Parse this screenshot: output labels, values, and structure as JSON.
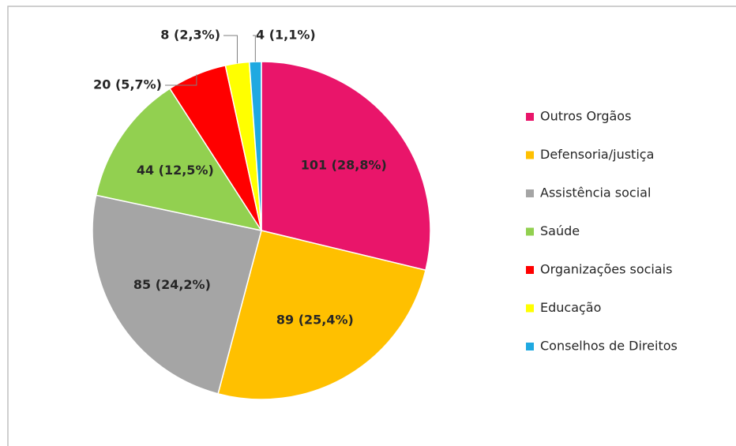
{
  "chart_data": {
    "type": "pie",
    "categories": [
      "Outros Orgãos",
      "Defensoria/justiça",
      "Assistência social",
      "Saúde",
      "Organizações sociais",
      "Educação",
      "Conselhos de Direitos"
    ],
    "values": [
      101,
      89,
      85,
      44,
      20,
      8,
      4
    ],
    "value_labels": [
      "101 (28,8%)",
      "89 (25,4%)",
      "85 (24,2%)",
      "44 (12,5%)",
      "20 (5,7%)",
      "8 (2,3%)",
      "4 (1,1%)"
    ],
    "colors": [
      "#e9156a",
      "#ffc000",
      "#a5a5a5",
      "#92d050",
      "#ff0000",
      "#ffff00",
      "#1fa9e1"
    ],
    "legend": "right"
  }
}
